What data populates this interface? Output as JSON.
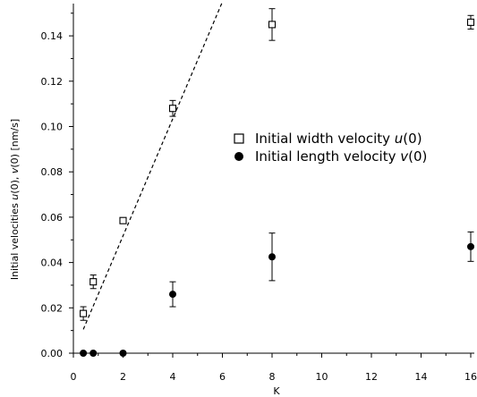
{
  "chart_data": {
    "type": "scatter",
    "xlabel": "K",
    "ylabel": "Initial velocities u(0), v(0) [nm/s]",
    "xlim": [
      0,
      16
    ],
    "ylim": [
      0,
      0.15
    ],
    "x_ticks": [
      "0",
      "2",
      "4",
      "6",
      "8",
      "10",
      "12",
      "14",
      "16"
    ],
    "y_ticks": [
      "0.00",
      "0.02",
      "0.04",
      "0.06",
      "0.08",
      "0.10",
      "0.12",
      "0.14"
    ],
    "grid": false,
    "legend_position": "center-right",
    "series": [
      {
        "name": "Initial width velocity u(0)",
        "marker": "open-square",
        "x": [
          0.4,
          0.8,
          2,
          4,
          8,
          16
        ],
        "y": [
          0.0175,
          0.0315,
          0.0585,
          0.108,
          0.145,
          0.146
        ],
        "err": [
          0.003,
          0.003,
          0.001,
          0.0035,
          0.007,
          0.003
        ]
      },
      {
        "name": "Initial length velocity v(0)",
        "marker": "filled-circle",
        "x": [
          0.4,
          0.8,
          2,
          4,
          8,
          16
        ],
        "y": [
          0.0,
          0.0,
          0.0,
          0.026,
          0.0425,
          0.047
        ],
        "err": [
          0,
          0,
          0,
          0.0055,
          0.0105,
          0.0065
        ]
      }
    ],
    "fit_line": {
      "style": "dashed",
      "x": [
        0.4,
        6.0
      ],
      "y": [
        0.0105,
        0.155
      ]
    }
  },
  "legend": {
    "width_label": "Initial width velocity ",
    "width_symbol": "u",
    "width_suffix": "(0)",
    "length_label": "Initial length velocity ",
    "length_symbol": "v",
    "length_suffix": "(0)"
  },
  "ylabel_parts": {
    "prefix": "Initial velocities ",
    "u": "u",
    "mid": "(0), ",
    "v": "v",
    "suffix": "(0) [nm/s]"
  }
}
